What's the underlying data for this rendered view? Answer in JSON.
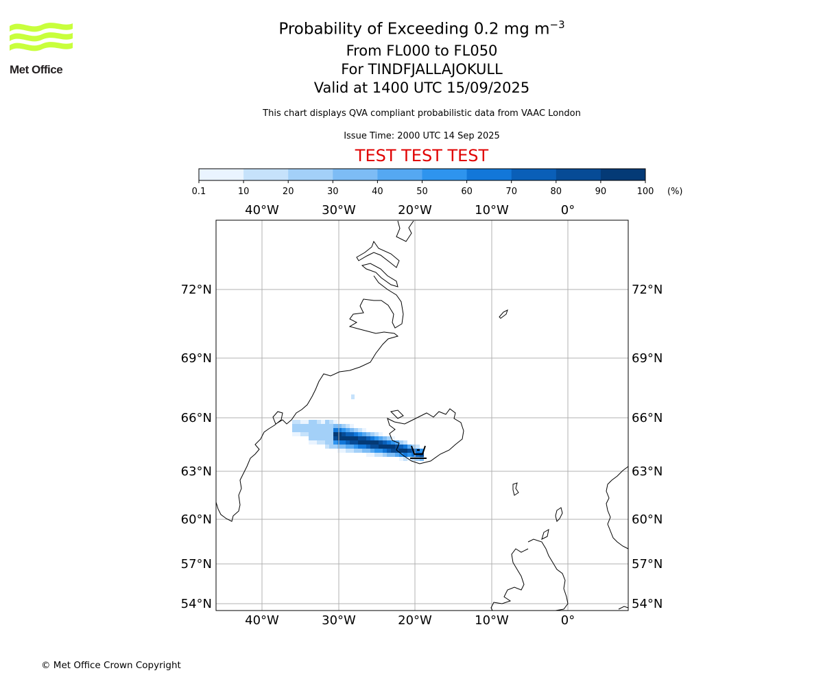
{
  "branding": {
    "logo_text": "Met Office",
    "logo_color": "#c8ff3c",
    "copyright": "© Met Office Crown Copyright"
  },
  "header": {
    "title_main": "Probability of Exceeding 0.2 mg m",
    "title_sup": "−3",
    "level_range": "From FL000 to FL050",
    "volcano": "For TINDFJALLAJOKULL",
    "valid_time": "Valid at 1400 UTC 15/09/2025",
    "description": "This chart displays QVA compliant probabilistic data from VAAC London",
    "issue_time": "Issue Time: 2000 UTC 14 Sep 2025",
    "test_banner": "TEST TEST TEST",
    "test_color": "#e00000"
  },
  "colorbar": {
    "ticks": [
      "0.1",
      "10",
      "20",
      "30",
      "40",
      "50",
      "60",
      "70",
      "80",
      "90",
      "100"
    ],
    "unit": "(%)",
    "colors": [
      "#eaf4ff",
      "#c6e2fb",
      "#a3d0f8",
      "#7dbcf5",
      "#55a8f2",
      "#2e94ee",
      "#1277d9",
      "#0a5fb8",
      "#064b96",
      "#043a76",
      "#022b57"
    ]
  },
  "map": {
    "lon_ticks": [
      "40°W",
      "30°W",
      "20°W",
      "10°W",
      "0°"
    ],
    "lat_ticks": [
      "72°N",
      "69°N",
      "66°N",
      "63°N",
      "60°N",
      "57°N",
      "54°N"
    ],
    "grid_color": "#b0b0b0",
    "coast_color": "#000000"
  }
}
